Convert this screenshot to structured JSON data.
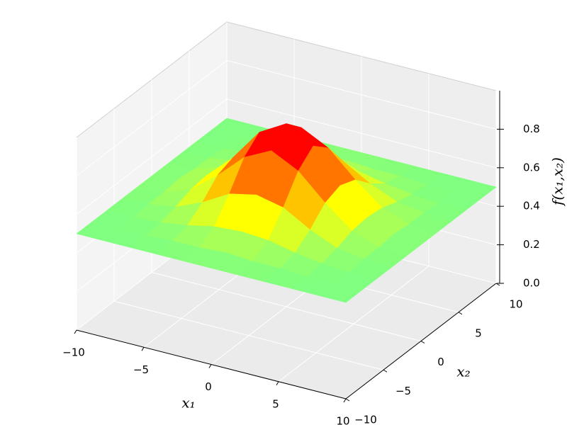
{
  "chart_data": {
    "type": "surface",
    "x_label": "x₁",
    "y_label": "x₂",
    "z_label": "f(x₁,x₂)",
    "colormap": "jet",
    "grid": true,
    "x": [
      -10,
      -8,
      -6,
      -4,
      -2,
      0,
      2,
      4,
      6,
      8,
      10
    ],
    "y": [
      -10,
      -8,
      -6,
      -4,
      -2,
      0,
      2,
      4,
      6,
      8,
      10
    ],
    "z": [
      [
        0.5,
        0.5,
        0.5,
        0.5,
        0.5,
        0.5,
        0.5,
        0.5,
        0.5,
        0.5,
        0.5
      ],
      [
        0.5,
        0.5,
        0.5,
        0.51,
        0.51,
        0.52,
        0.51,
        0.51,
        0.5,
        0.5,
        0.5
      ],
      [
        0.5,
        0.5,
        0.51,
        0.53,
        0.56,
        0.57,
        0.56,
        0.53,
        0.51,
        0.5,
        0.5
      ],
      [
        0.5,
        0.51,
        0.53,
        0.59,
        0.67,
        0.7,
        0.67,
        0.59,
        0.53,
        0.51,
        0.5
      ],
      [
        0.5,
        0.51,
        0.56,
        0.67,
        0.8,
        0.87,
        0.8,
        0.67,
        0.56,
        0.51,
        0.5
      ],
      [
        0.5,
        0.52,
        0.57,
        0.7,
        0.87,
        0.95,
        0.87,
        0.7,
        0.57,
        0.52,
        0.5
      ],
      [
        0.5,
        0.51,
        0.56,
        0.67,
        0.8,
        0.87,
        0.8,
        0.67,
        0.56,
        0.51,
        0.5
      ],
      [
        0.5,
        0.51,
        0.53,
        0.59,
        0.67,
        0.7,
        0.67,
        0.59,
        0.53,
        0.51,
        0.5
      ],
      [
        0.5,
        0.5,
        0.51,
        0.53,
        0.56,
        0.57,
        0.56,
        0.53,
        0.51,
        0.5,
        0.5
      ],
      [
        0.5,
        0.5,
        0.5,
        0.51,
        0.51,
        0.52,
        0.51,
        0.51,
        0.5,
        0.5,
        0.5
      ],
      [
        0.5,
        0.5,
        0.5,
        0.5,
        0.5,
        0.5,
        0.5,
        0.5,
        0.5,
        0.5,
        0.5
      ]
    ],
    "xlim": [
      -10,
      10
    ],
    "ylim": [
      -10,
      10
    ],
    "zlim": [
      0,
      1
    ],
    "xticks": [
      {
        "value": -10,
        "label": "−10"
      },
      {
        "value": -5,
        "label": "−5"
      },
      0,
      5,
      10
    ],
    "yticks": [
      {
        "value": -10,
        "label": "−10"
      },
      {
        "value": -5,
        "label": "−5"
      },
      0,
      5,
      10
    ],
    "zticks": [
      {
        "value": 0,
        "label": "0.0"
      },
      0.2,
      0.4,
      0.6,
      0.8
    ]
  }
}
